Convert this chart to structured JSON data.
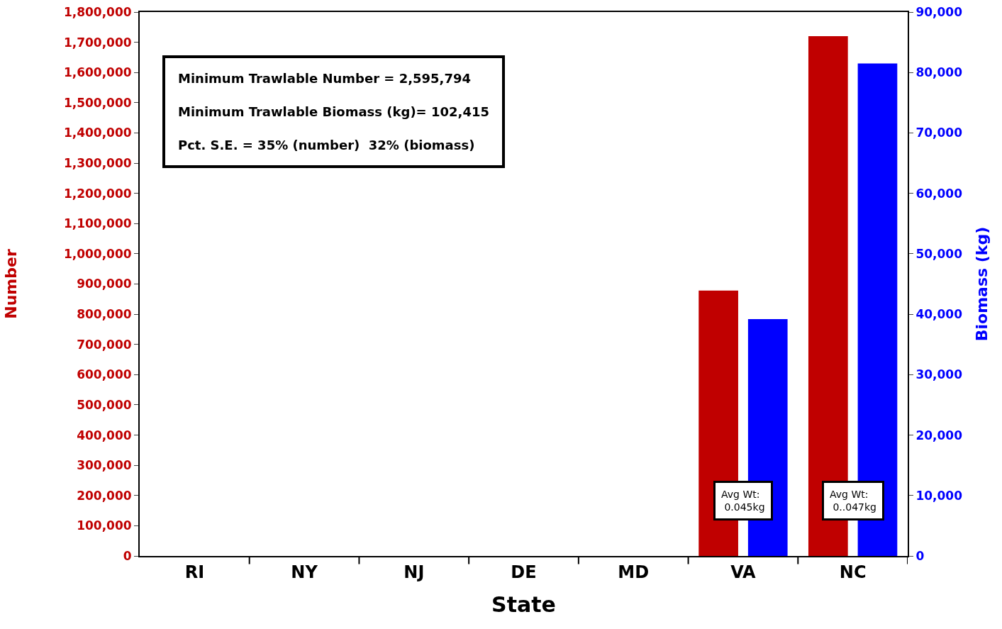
{
  "chart_data": {
    "type": "bar",
    "xlabel": "State",
    "ylabel": "Number",
    "y2label": "Biomass (kg)",
    "categories": [
      "RI",
      "NY",
      "NJ",
      "DE",
      "MD",
      "VA",
      "NC"
    ],
    "series": [
      {
        "color": "#c00000",
        "values": [
          0,
          0,
          0,
          0,
          0,
          878000,
          1720000
        ]
      },
      {
        "color": "#0000ff",
        "axis": "y2",
        "values": [
          0,
          0,
          0,
          0,
          0,
          39200,
          81500
        ]
      }
    ],
    "ylim": [
      0,
      1800000
    ],
    "yticks": [
      0,
      {
        "value": 100000,
        "label": "100,000"
      },
      {
        "value": 200000,
        "label": "200,000"
      },
      {
        "value": 300000,
        "label": "300,000"
      },
      {
        "value": 400000,
        "label": "400,000"
      },
      {
        "value": 500000,
        "label": "500,000"
      },
      {
        "value": 600000,
        "label": "600,000"
      },
      {
        "value": 700000,
        "label": "700,000"
      },
      {
        "value": 800000,
        "label": "800,000"
      },
      {
        "value": 900000,
        "label": "900,000"
      },
      {
        "value": 1000000,
        "label": "1,000,000"
      },
      {
        "value": 1100000,
        "label": "1,100,000"
      },
      {
        "value": 1200000,
        "label": "1,200,000"
      },
      {
        "value": 1300000,
        "label": "1,300,000"
      },
      {
        "value": 1400000,
        "label": "1,400,000"
      },
      {
        "value": 1500000,
        "label": "1,500,000"
      },
      {
        "value": 1600000,
        "label": "1,600,000"
      },
      {
        "value": 1700000,
        "label": "1,700,000"
      },
      {
        "value": 1800000,
        "label": "1,800,000"
      }
    ],
    "y2lim": [
      0,
      90000
    ],
    "y2ticks": [
      0,
      {
        "value": 10000,
        "label": "10,000"
      },
      {
        "value": 20000,
        "label": "20,000"
      },
      {
        "value": 30000,
        "label": "30,000"
      },
      {
        "value": 40000,
        "label": "40,000"
      },
      {
        "value": 50000,
        "label": "50,000"
      },
      {
        "value": 60000,
        "label": "60,000"
      },
      {
        "value": 70000,
        "label": "70,000"
      },
      {
        "value": 80000,
        "label": "80,000"
      },
      {
        "value": 90000,
        "label": "90,000"
      }
    ],
    "annotations": [
      "Minimum Trawlable Number = 2,595,794",
      "Minimum Trawlable Biomass (kg)= 102,415",
      "Pct. S.E. = 35% (number)  32% (biomass)",
      "Avg Wt:\n 0.045kg",
      "Avg Wt:\n 0..047kg"
    ]
  }
}
